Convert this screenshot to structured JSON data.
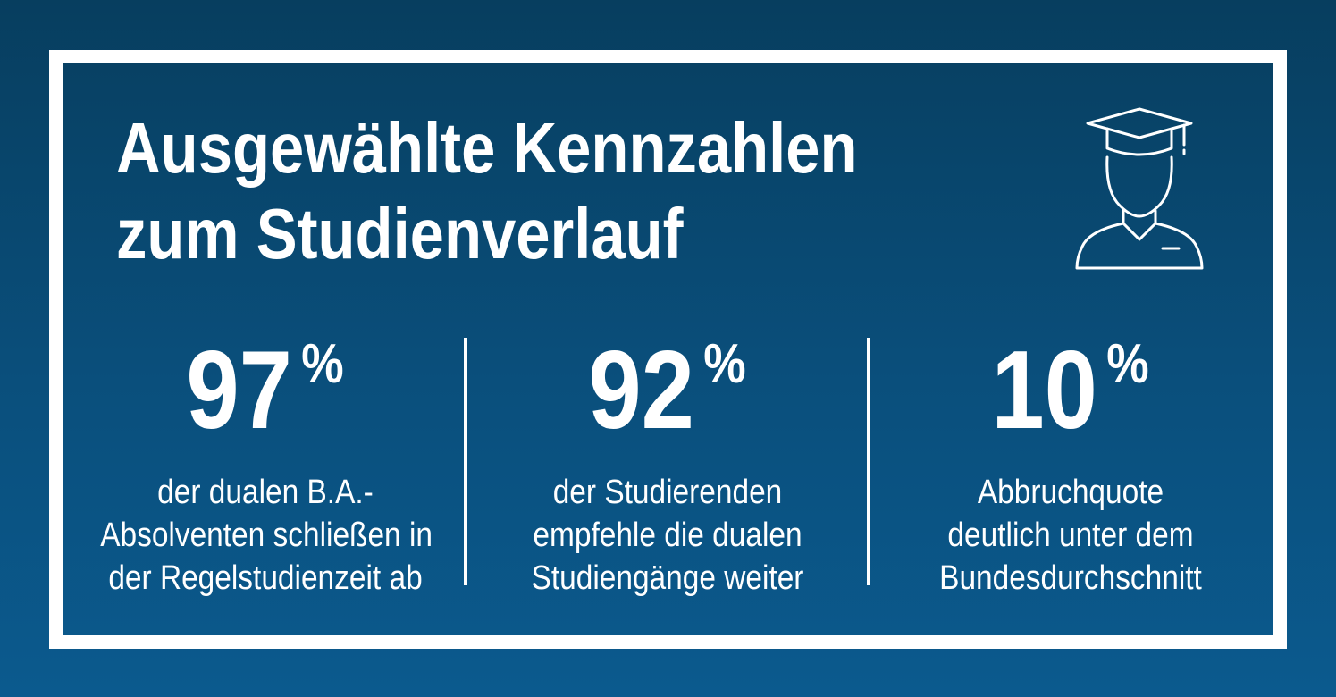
{
  "title": {
    "line1": "Ausgewählte Kennzahlen",
    "line2": "zum Studienverlauf"
  },
  "icon": "graduate-student-icon",
  "colors": {
    "background_top": "#073e5f",
    "background_bottom": "#0b5a8e",
    "foreground": "#ffffff"
  },
  "stats": [
    {
      "value": "97",
      "unit": "%",
      "description": [
        "der dualen B.A.-",
        "Absolventen schließen in",
        "der Regelstudienzeit ab"
      ]
    },
    {
      "value": "92",
      "unit": "%",
      "description": [
        "der Studierenden",
        "empfehle die dualen",
        "Studiengänge weiter"
      ]
    },
    {
      "value": "10",
      "unit": "%",
      "description": [
        "Abbruchquote",
        "deutlich unter dem",
        "Bundesdurchschnitt"
      ]
    }
  ]
}
